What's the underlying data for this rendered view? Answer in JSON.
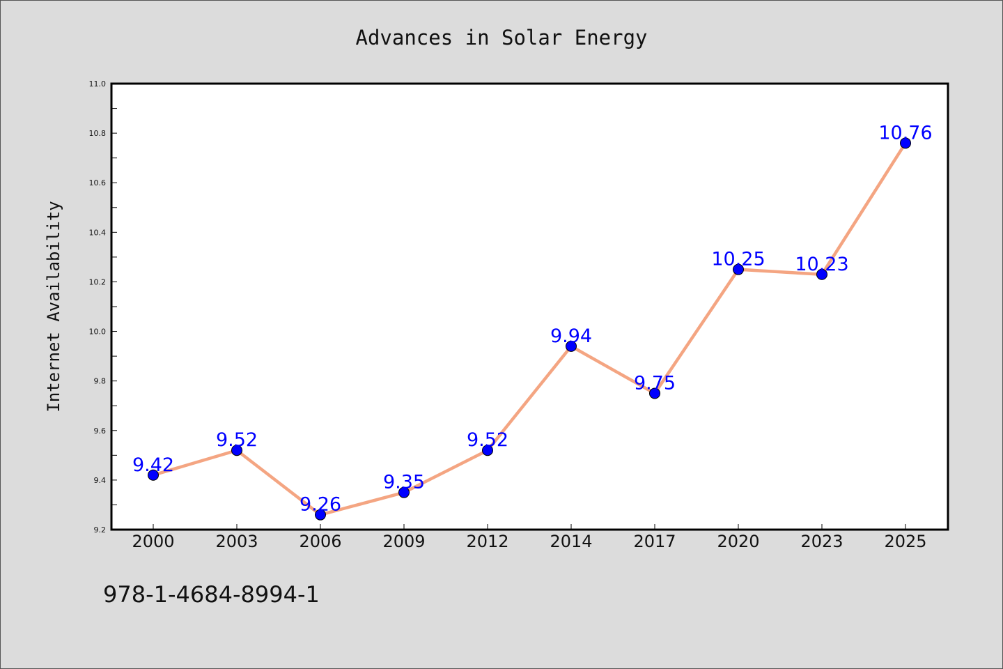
{
  "chart_data": {
    "type": "line",
    "title": "Advances in Solar Energy",
    "xlabel": "",
    "ylabel": "Internet Availability",
    "categories": [
      "2000",
      "2003",
      "2006",
      "2009",
      "2012",
      "2014",
      "2017",
      "2020",
      "2023",
      "2025"
    ],
    "series": [
      {
        "values": [
          9.42,
          9.52,
          9.26,
          9.35,
          9.52,
          9.94,
          9.75,
          10.25,
          10.23,
          10.76
        ],
        "data_labels": [
          "9.42",
          "9.52",
          "9.26",
          "9.35",
          "9.52",
          "9.94",
          "9.75",
          "10.25",
          "10.23",
          "10.76"
        ],
        "line_color": "#f4a582",
        "marker_color": "#0000ff"
      }
    ],
    "ylim": [
      9.2,
      11.0
    ],
    "yticks": [
      "9.2",
      "9.4",
      "9.6",
      "9.8",
      "10.0",
      "10.2",
      "10.4",
      "10.6",
      "10.8",
      "11.0"
    ],
    "grid": false,
    "legend": "none",
    "plot_background": "#ffffff",
    "figure_background": "#dcdcdc",
    "label_color": "#0000ff"
  },
  "footer": {
    "text": "978-1-4684-8994-1"
  }
}
